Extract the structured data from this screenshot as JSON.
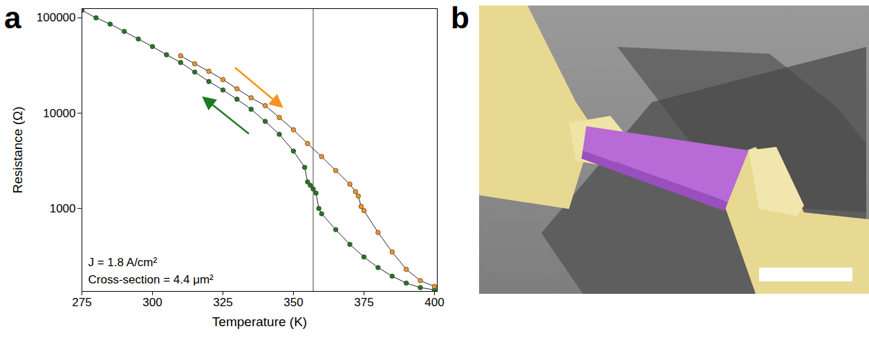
{
  "chart_data": {
    "type": "line",
    "marker": "circle",
    "log": "y",
    "grid": false,
    "xlabel": "Temperature (K)",
    "ylabel": "Resistance (Ω)",
    "xlim": [
      275,
      401
    ],
    "xticks": [
      275,
      300,
      325,
      350,
      375,
      400
    ],
    "ylim": [
      135,
      125000
    ],
    "yticks": [
      1000,
      10000,
      100000
    ],
    "vline": 357,
    "annotations": [
      "J = 1.8 A/cm²",
      "Cross-section = 4.4 μm²"
    ],
    "series": [
      {
        "color": "#1f7a1f",
        "x": [
          275,
          280,
          285,
          290,
          295,
          300,
          305,
          310,
          315,
          320,
          325,
          330,
          335,
          340,
          345,
          350,
          354,
          355,
          356,
          357,
          358,
          359,
          360,
          365,
          370,
          375,
          380,
          385,
          390,
          395,
          400
        ],
        "values": [
          120000,
          100000,
          86000,
          72000,
          60000,
          50000,
          41000,
          34000,
          27000,
          21500,
          17500,
          14000,
          11000,
          8200,
          6000,
          4000,
          2700,
          1900,
          1750,
          1600,
          1450,
          1000,
          880,
          600,
          420,
          310,
          240,
          195,
          165,
          148,
          140
        ]
      },
      {
        "color": "#f7931e",
        "x": [
          310,
          315,
          320,
          325,
          330,
          335,
          340,
          345,
          350,
          355,
          360,
          365,
          370,
          372,
          373,
          374,
          375,
          380,
          385,
          390,
          395,
          400
        ],
        "values": [
          40000,
          33000,
          27500,
          22500,
          18000,
          14500,
          12000,
          9000,
          6700,
          4800,
          3500,
          2500,
          1800,
          1500,
          1350,
          1050,
          950,
          560,
          350,
          230,
          175,
          152
        ]
      }
    ]
  },
  "panel_labels": [
    "a",
    "b"
  ]
}
